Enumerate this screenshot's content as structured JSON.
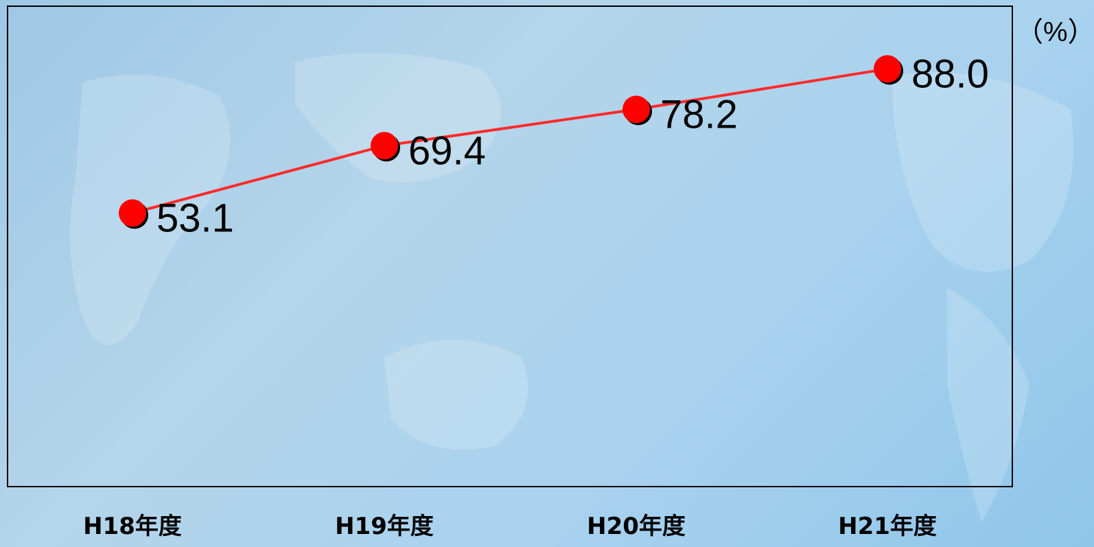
{
  "chart_data": {
    "type": "line",
    "title": "",
    "xlabel": "",
    "ylabel": "",
    "unit": "（%）",
    "categories": [
      "H18年度",
      "H19年度",
      "H20年度",
      "H21年度"
    ],
    "series": [
      {
        "values": [
          53.1,
          69.4,
          78.2,
          88.0
        ],
        "color": "#ff0000"
      }
    ],
    "ylim": [
      0,
      100
    ],
    "grid": false,
    "legend": "none"
  },
  "colors": {
    "line": "#ff2a2a",
    "marker": "#ff0000",
    "plot_border": "#000000"
  }
}
